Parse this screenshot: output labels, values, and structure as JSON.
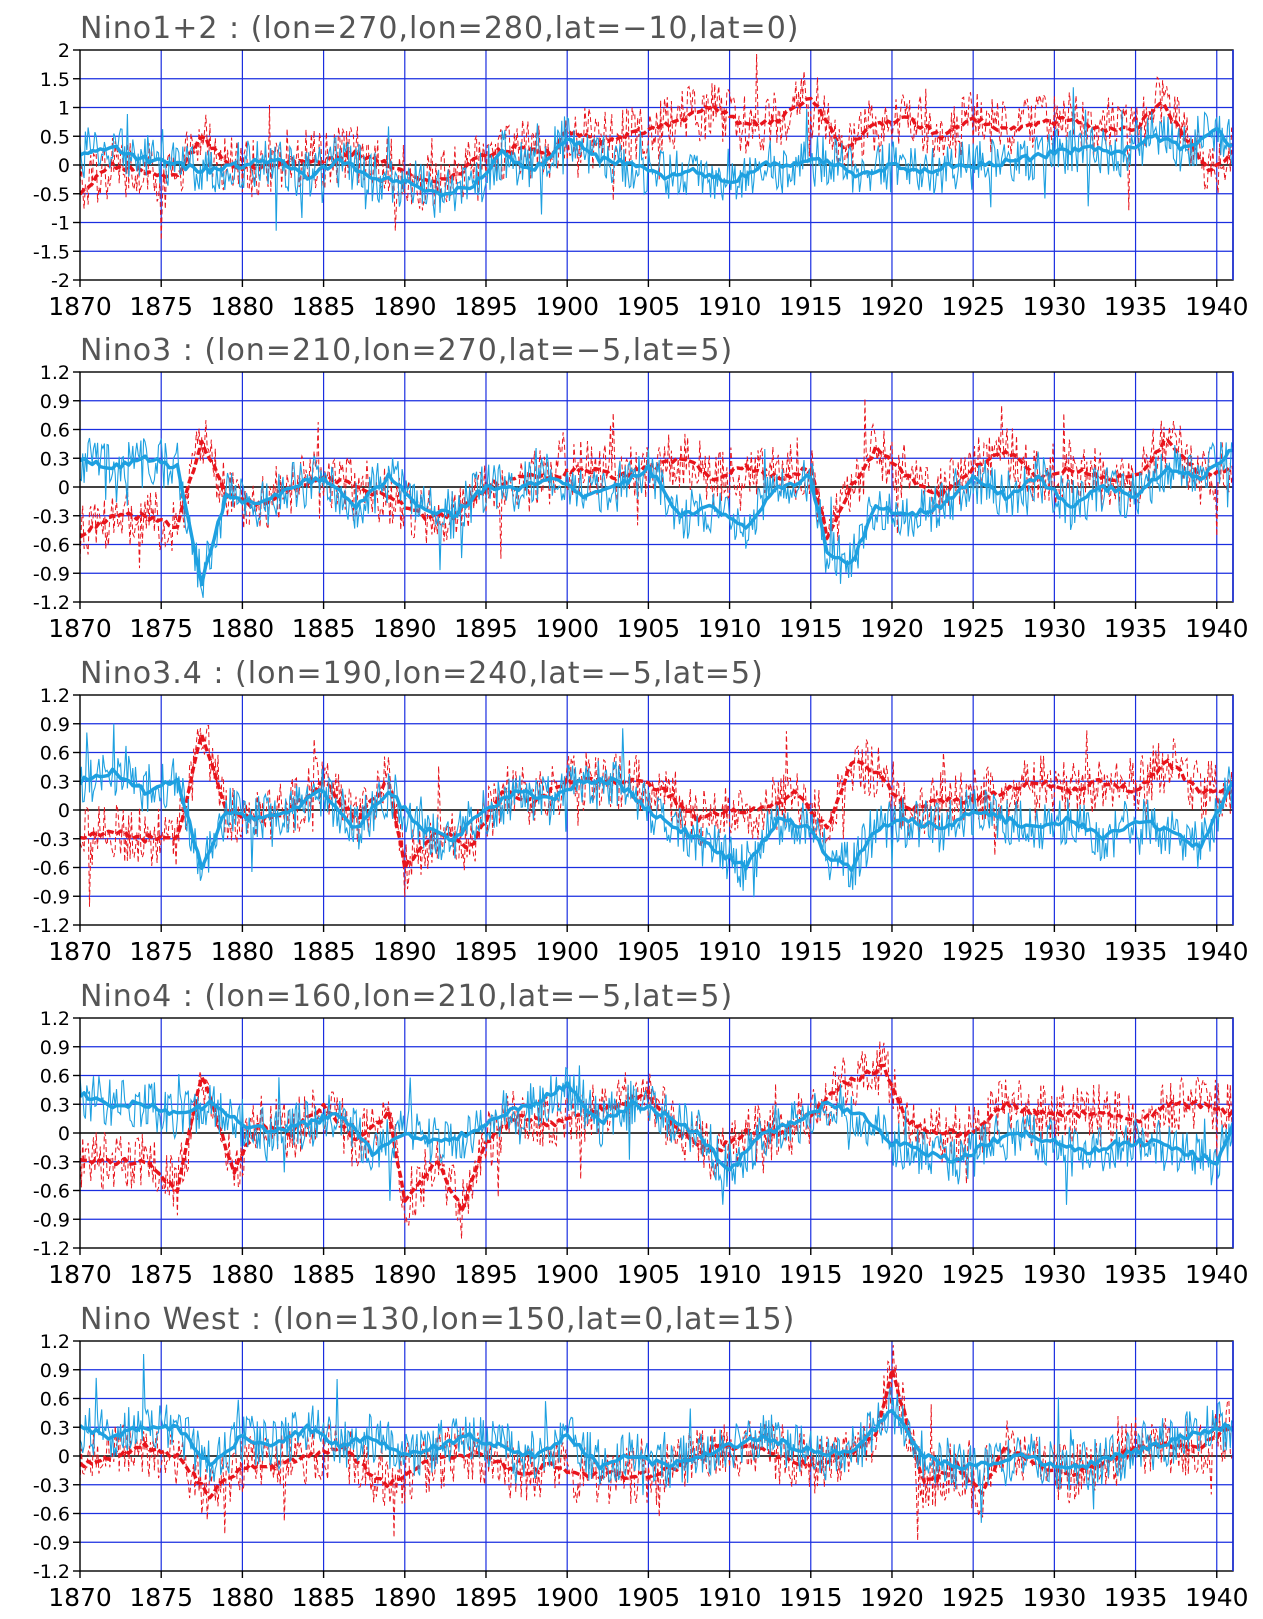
{
  "colors": {
    "grid": "#1a2ee0",
    "zero_line": "#000000",
    "series_red": "#e8141c",
    "series_blue": "#1ea0e0",
    "frame": "#000000"
  },
  "x_axis": {
    "ticks": [
      "1870",
      "1875",
      "1880",
      "1885",
      "1890",
      "1895",
      "1900",
      "1905",
      "1910",
      "1915",
      "1920",
      "1925",
      "1930",
      "1935",
      "1940"
    ]
  },
  "chart_data": [
    {
      "type": "line",
      "title": "Nino1+2 : (lon=270,lon=280,lat=−10,lat=0)",
      "xlim": [
        1870,
        1941
      ],
      "ylim": [
        -2,
        2
      ],
      "yticks": [
        "2",
        "1.5",
        "1",
        "0.5",
        "0",
        "-0.5",
        "-1",
        "-1.5",
        "-2"
      ],
      "grid": true,
      "series": [
        {
          "color": "red",
          "style": "dashed",
          "x": [
            1870,
            1872,
            1874,
            1876,
            1877.5,
            1879,
            1881,
            1883,
            1885,
            1887,
            1889,
            1891,
            1893,
            1895,
            1897,
            1899,
            1900,
            1902,
            1905,
            1907,
            1909,
            1911,
            1913,
            1915,
            1917,
            1919,
            1921,
            1923,
            1925,
            1927,
            1929,
            1931,
            1933,
            1935,
            1936.5,
            1938,
            1939.5,
            1941
          ],
          "y": [
            -0.5,
            0,
            -0.1,
            -0.2,
            0.5,
            0,
            -0.1,
            0.1,
            0.1,
            0.2,
            0,
            -0.3,
            -0.2,
            0.2,
            0.3,
            0.2,
            0.6,
            0.4,
            0.6,
            0.8,
            1.0,
            0.7,
            0.8,
            1.2,
            0.3,
            0.7,
            0.8,
            0.5,
            0.8,
            0.6,
            0.7,
            0.8,
            0.6,
            0.6,
            1.1,
            0.5,
            -0.1,
            0.2
          ]
        },
        {
          "color": "blue",
          "style": "solid",
          "x": [
            1870,
            1872,
            1874,
            1876,
            1878,
            1880,
            1882,
            1884,
            1886,
            1888,
            1890,
            1892,
            1894,
            1896,
            1898,
            1900,
            1902,
            1904,
            1906,
            1908,
            1910,
            1912,
            1914,
            1916,
            1918,
            1920,
            1922,
            1924,
            1926,
            1928,
            1930,
            1932,
            1934,
            1936,
            1938,
            1940,
            1941
          ],
          "y": [
            0.2,
            0.3,
            0.1,
            0,
            -0.1,
            0,
            0.1,
            -0.2,
            0.1,
            -0.2,
            -0.3,
            -0.5,
            -0.4,
            0.2,
            -0.1,
            0.5,
            0.1,
            0,
            -0.2,
            -0.1,
            -0.3,
            0,
            0,
            0.1,
            -0.2,
            0,
            -0.1,
            0,
            0,
            0.1,
            0.2,
            0.3,
            0.2,
            0.5,
            0.3,
            0.6,
            0.3
          ]
        }
      ]
    },
    {
      "type": "line",
      "title": "Nino3 : (lon=210,lon=270,lat=−5,lat=5)",
      "xlim": [
        1870,
        1941
      ],
      "ylim": [
        -1.2,
        1.2
      ],
      "yticks": [
        "1.2",
        "0.9",
        "0.6",
        "0.3",
        "0",
        "-0.3",
        "-0.6",
        "-0.9",
        "-1.2"
      ],
      "grid": true,
      "series": [
        {
          "color": "red",
          "style": "dashed",
          "x": [
            1870,
            1872,
            1874,
            1876,
            1877.5,
            1879,
            1881,
            1883,
            1885,
            1887,
            1889,
            1891,
            1893,
            1895,
            1897,
            1899,
            1901,
            1903,
            1905,
            1907,
            1909,
            1911,
            1913,
            1915,
            1916,
            1917.5,
            1919,
            1921,
            1923,
            1925,
            1927,
            1929,
            1931,
            1933,
            1935,
            1937,
            1939,
            1941
          ],
          "y": [
            -0.5,
            -0.3,
            -0.3,
            -0.4,
            0.5,
            -0.1,
            -0.2,
            0,
            0.1,
            0,
            -0.1,
            -0.3,
            -0.3,
            0,
            0.1,
            0.1,
            0.2,
            0.1,
            0.2,
            0.3,
            0.1,
            0.2,
            0.1,
            0.2,
            -0.5,
            0,
            0.4,
            0.1,
            -0.1,
            0.2,
            0.4,
            0.1,
            0.2,
            0.1,
            0.1,
            0.5,
            0.1,
            0.2
          ]
        },
        {
          "color": "blue",
          "style": "solid",
          "x": [
            1870,
            1872,
            1874,
            1876,
            1877.5,
            1879,
            1881,
            1883,
            1885,
            1887,
            1889,
            1891,
            1893,
            1895,
            1897,
            1899,
            1901,
            1903,
            1905,
            1907,
            1909,
            1911,
            1913,
            1915,
            1916,
            1917.5,
            1919,
            1921,
            1923,
            1925,
            1927,
            1929,
            1931,
            1933,
            1935,
            1937,
            1939,
            1941
          ],
          "y": [
            0.3,
            0.2,
            0.3,
            0.2,
            -1.0,
            -0.1,
            -0.2,
            0,
            0.1,
            -0.2,
            0.1,
            -0.2,
            -0.3,
            0,
            0,
            0.1,
            -0.1,
            0,
            0.2,
            -0.3,
            -0.2,
            -0.4,
            0,
            0.1,
            -0.7,
            -0.8,
            -0.2,
            -0.3,
            -0.2,
            0.1,
            -0.1,
            0.1,
            -0.2,
            0,
            -0.1,
            0.2,
            0.1,
            0.4
          ]
        }
      ]
    },
    {
      "type": "line",
      "title": "Nino3.4 : (lon=190,lon=240,lat=−5,lat=5)",
      "xlim": [
        1870,
        1941
      ],
      "ylim": [
        -1.2,
        1.2
      ],
      "yticks": [
        "1.2",
        "0.9",
        "0.6",
        "0.3",
        "0",
        "-0.3",
        "-0.6",
        "-0.9",
        "-1.2"
      ],
      "grid": true,
      "series": [
        {
          "color": "red",
          "style": "dashed",
          "x": [
            1870,
            1872,
            1874,
            1876,
            1877.5,
            1879,
            1881,
            1883,
            1885,
            1887,
            1889,
            1890,
            1892,
            1894,
            1896,
            1898,
            1900,
            1902,
            1904,
            1906,
            1908,
            1910,
            1912,
            1914,
            1916,
            1917.5,
            1919,
            1921,
            1923,
            1925,
            1927,
            1929,
            1931,
            1933,
            1935,
            1937,
            1939,
            1941
          ],
          "y": [
            -0.3,
            -0.2,
            -0.3,
            -0.3,
            0.8,
            0,
            -0.1,
            0,
            0.3,
            -0.1,
            0.3,
            -0.6,
            -0.2,
            -0.4,
            0.2,
            0.1,
            0.3,
            0.3,
            0.3,
            0.2,
            -0.1,
            0,
            0,
            0.2,
            -0.2,
            0.5,
            0.4,
            0,
            0.1,
            0.1,
            0.2,
            0.3,
            0.2,
            0.3,
            0.2,
            0.5,
            0.2,
            0.2
          ]
        },
        {
          "color": "blue",
          "style": "solid",
          "x": [
            1870,
            1872,
            1874,
            1876,
            1877.5,
            1879,
            1881,
            1883,
            1885,
            1887,
            1889,
            1891,
            1893,
            1895,
            1897,
            1899,
            1901,
            1903,
            1905,
            1907,
            1909,
            1911,
            1913,
            1915,
            1916,
            1917.5,
            1919,
            1921,
            1923,
            1925,
            1927,
            1929,
            1931,
            1933,
            1935,
            1937,
            1939,
            1941
          ],
          "y": [
            0.3,
            0.4,
            0.2,
            0.3,
            -0.6,
            0,
            -0.1,
            0,
            0.2,
            -0.2,
            0.2,
            -0.2,
            -0.3,
            0,
            0.2,
            0.1,
            0.3,
            0.3,
            0,
            -0.2,
            -0.4,
            -0.6,
            -0.1,
            -0.2,
            -0.5,
            -0.6,
            -0.2,
            -0.1,
            -0.2,
            0,
            -0.1,
            -0.2,
            -0.1,
            -0.3,
            -0.1,
            -0.2,
            -0.4,
            0.3
          ]
        }
      ]
    },
    {
      "type": "line",
      "title": "Nino4 : (lon=160,lon=210,lat=−5,lat=5)",
      "xlim": [
        1870,
        1941
      ],
      "ylim": [
        -1.2,
        1.2
      ],
      "yticks": [
        "1.2",
        "0.9",
        "0.6",
        "0.3",
        "0",
        "-0.3",
        "-0.6",
        "-0.9",
        "-1.2"
      ],
      "grid": true,
      "series": [
        {
          "color": "red",
          "style": "dashed",
          "x": [
            1870,
            1872,
            1874,
            1876,
            1877.5,
            1879.5,
            1881,
            1883,
            1885,
            1887,
            1889,
            1890,
            1892,
            1893.5,
            1895,
            1897,
            1899,
            1901,
            1903,
            1905,
            1907,
            1909,
            1911,
            1913,
            1915,
            1917,
            1919.5,
            1921,
            1923,
            1925,
            1927,
            1929,
            1931,
            1933,
            1935,
            1937,
            1939,
            1941
          ],
          "y": [
            -0.3,
            -0.3,
            -0.3,
            -0.6,
            0.6,
            -0.4,
            0.1,
            0,
            0.3,
            -0.1,
            0.2,
            -0.7,
            -0.3,
            -0.8,
            -0.1,
            0.2,
            0.1,
            0.2,
            0.3,
            0.4,
            0,
            -0.2,
            0,
            0,
            0.2,
            0.5,
            0.7,
            0.1,
            0,
            0,
            0.3,
            0.2,
            0.2,
            0.2,
            0.1,
            0.3,
            0.3,
            0.2
          ]
        },
        {
          "color": "blue",
          "style": "solid",
          "x": [
            1870,
            1872,
            1874,
            1876,
            1878,
            1880,
            1882,
            1884,
            1886,
            1888,
            1890,
            1892,
            1894,
            1896,
            1898,
            1900,
            1902,
            1904,
            1906,
            1908,
            1910,
            1912,
            1914,
            1916,
            1918,
            1920,
            1922,
            1924,
            1926,
            1928,
            1930,
            1932,
            1934,
            1936,
            1938,
            1940,
            1941
          ],
          "y": [
            0.4,
            0.3,
            0.3,
            0.2,
            0.3,
            0.1,
            0,
            0.1,
            0.2,
            -0.2,
            0,
            -0.1,
            0,
            0.2,
            0.3,
            0.5,
            0.1,
            0.3,
            0.2,
            0,
            -0.4,
            0,
            0.1,
            0.3,
            0.2,
            -0.1,
            -0.2,
            -0.3,
            -0.1,
            0,
            -0.1,
            -0.2,
            -0.1,
            -0.1,
            -0.2,
            -0.3,
            0.1
          ]
        }
      ]
    },
    {
      "type": "line",
      "title": "Nino West : (lon=130,lon=150,lat=0,lat=15)",
      "xlim": [
        1870,
        1941
      ],
      "ylim": [
        -1.2,
        1.2
      ],
      "yticks": [
        "1.2",
        "0.9",
        "0.6",
        "0.3",
        "0",
        "-0.3",
        "-0.6",
        "-0.9",
        "-1.2"
      ],
      "grid": true,
      "series": [
        {
          "color": "red",
          "style": "dashed",
          "x": [
            1870,
            1872,
            1874,
            1876,
            1878,
            1880,
            1882,
            1884,
            1886,
            1888,
            1889,
            1891,
            1893,
            1895,
            1897,
            1899,
            1901,
            1903,
            1905,
            1907,
            1909,
            1911,
            1913,
            1915,
            1917,
            1919,
            1920,
            1922,
            1924,
            1925.5,
            1927,
            1929,
            1931,
            1933,
            1935,
            1937,
            1939,
            1941
          ],
          "y": [
            -0.1,
            0,
            0.1,
            0,
            -0.4,
            -0.1,
            -0.1,
            0,
            0.1,
            -0.2,
            -0.3,
            -0.1,
            0,
            0,
            -0.2,
            -0.1,
            -0.2,
            -0.2,
            -0.2,
            -0.1,
            0.1,
            0.1,
            0,
            -0.1,
            0,
            0.2,
            0.9,
            -0.3,
            -0.1,
            -0.4,
            0.1,
            -0.1,
            -0.2,
            -0.1,
            0.1,
            0.1,
            0.1,
            0.3
          ]
        },
        {
          "color": "blue",
          "style": "solid",
          "x": [
            1870,
            1872,
            1874,
            1876,
            1878,
            1880,
            1882,
            1884,
            1886,
            1888,
            1890,
            1892,
            1894,
            1896,
            1898,
            1900,
            1902,
            1904,
            1906,
            1908,
            1910,
            1912,
            1914,
            1916,
            1918,
            1920,
            1922,
            1924,
            1926,
            1928,
            1930,
            1932,
            1934,
            1936,
            1938,
            1940,
            1941
          ],
          "y": [
            0.3,
            0.2,
            0.3,
            0.3,
            -0.1,
            0.2,
            0.1,
            0.3,
            0.1,
            0.2,
            0,
            0.1,
            0.2,
            0.1,
            0,
            0.2,
            -0.1,
            0,
            -0.1,
            0,
            0.1,
            0.2,
            0.1,
            0,
            0.1,
            0.5,
            0,
            -0.1,
            -0.1,
            0,
            -0.1,
            -0.1,
            0,
            0.1,
            0.2,
            0.3,
            0.3
          ]
        }
      ]
    }
  ]
}
